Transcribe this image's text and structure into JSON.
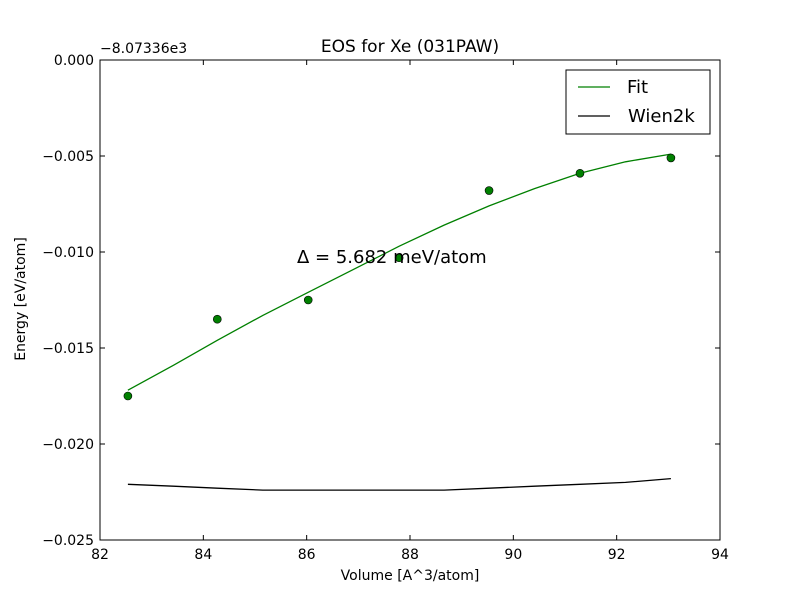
{
  "chart_data": {
    "type": "line",
    "title": "EOS for Xe (031PAW)",
    "xlabel": "Volume [A^3/atom]",
    "ylabel": "Energy [eV/atom]",
    "offset_text": "−8.07336e3",
    "annotation": "Δ = 5.682 meV/atom",
    "xlim": [
      82,
      94
    ],
    "ylim": [
      -0.025,
      0.0
    ],
    "x_ticks": [
      82,
      84,
      86,
      88,
      90,
      92,
      94
    ],
    "x_tick_labels": [
      "82",
      "84",
      "86",
      "88",
      "90",
      "92",
      "94"
    ],
    "y_ticks": [
      0.0,
      -0.005,
      -0.01,
      -0.015,
      -0.02,
      -0.025
    ],
    "y_tick_labels": [
      "0.000",
      "−0.005",
      "−0.010",
      "−0.015",
      "−0.020",
      "−0.025"
    ],
    "grid": false,
    "legend_position": "top-right",
    "points": {
      "color": "#008000",
      "x": [
        82.54,
        84.27,
        86.03,
        87.79,
        89.53,
        91.29,
        93.05
      ],
      "y": [
        -0.0175,
        -0.0135,
        -0.0125,
        -0.0103,
        -0.0068,
        -0.0059,
        -0.0051
      ]
    },
    "series": [
      {
        "name": "Fit",
        "color": "#008000",
        "x": [
          82.54,
          83.42,
          84.27,
          85.15,
          86.03,
          86.91,
          87.79,
          88.66,
          89.53,
          90.41,
          91.29,
          92.17,
          93.05
        ],
        "y": [
          -0.0172,
          -0.0159,
          -0.0146,
          -0.0133,
          -0.0121,
          -0.0109,
          -0.0097,
          -0.0086,
          -0.0076,
          -0.0067,
          -0.0059,
          -0.0053,
          -0.0049
        ]
      },
      {
        "name": "Wien2k",
        "color": "#000000",
        "x": [
          82.54,
          83.42,
          84.27,
          85.15,
          86.03,
          86.91,
          87.79,
          88.66,
          89.53,
          90.41,
          91.29,
          92.17,
          93.05
        ],
        "y": [
          -0.0221,
          -0.0222,
          -0.0223,
          -0.0224,
          -0.0224,
          -0.0224,
          -0.0224,
          -0.0224,
          -0.0223,
          -0.0222,
          -0.0221,
          -0.022,
          -0.0218
        ]
      }
    ]
  }
}
